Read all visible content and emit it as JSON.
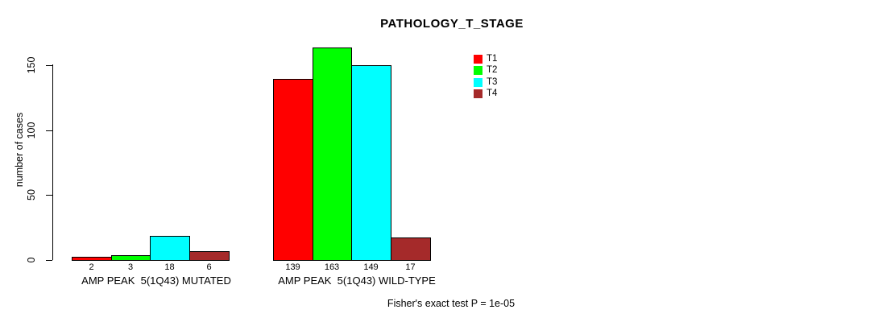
{
  "chart_data": {
    "type": "bar",
    "title": "PATHOLOGY_T_STAGE",
    "ylabel": "number of cases",
    "xlabel": "",
    "categories": [
      "AMP PEAK  5(1Q43) MUTATED",
      "AMP PEAK  5(1Q43) WILD-TYPE"
    ],
    "series": [
      {
        "name": "T1",
        "color": "#FF0000",
        "values": [
          2,
          139
        ]
      },
      {
        "name": "T2",
        "color": "#00FF00",
        "values": [
          3,
          163
        ]
      },
      {
        "name": "T3",
        "color": "#00FFFF",
        "values": [
          18,
          149
        ]
      },
      {
        "name": "T4",
        "color": "#A52A2A",
        "values": [
          6,
          17
        ]
      }
    ],
    "yticks": [
      0,
      50,
      100,
      150
    ],
    "ylim": [
      0,
      165
    ],
    "grid": false,
    "legend_position": "top-right",
    "bar_value_labels": true,
    "annotation": "Fisher's exact test P = 1e-05"
  }
}
